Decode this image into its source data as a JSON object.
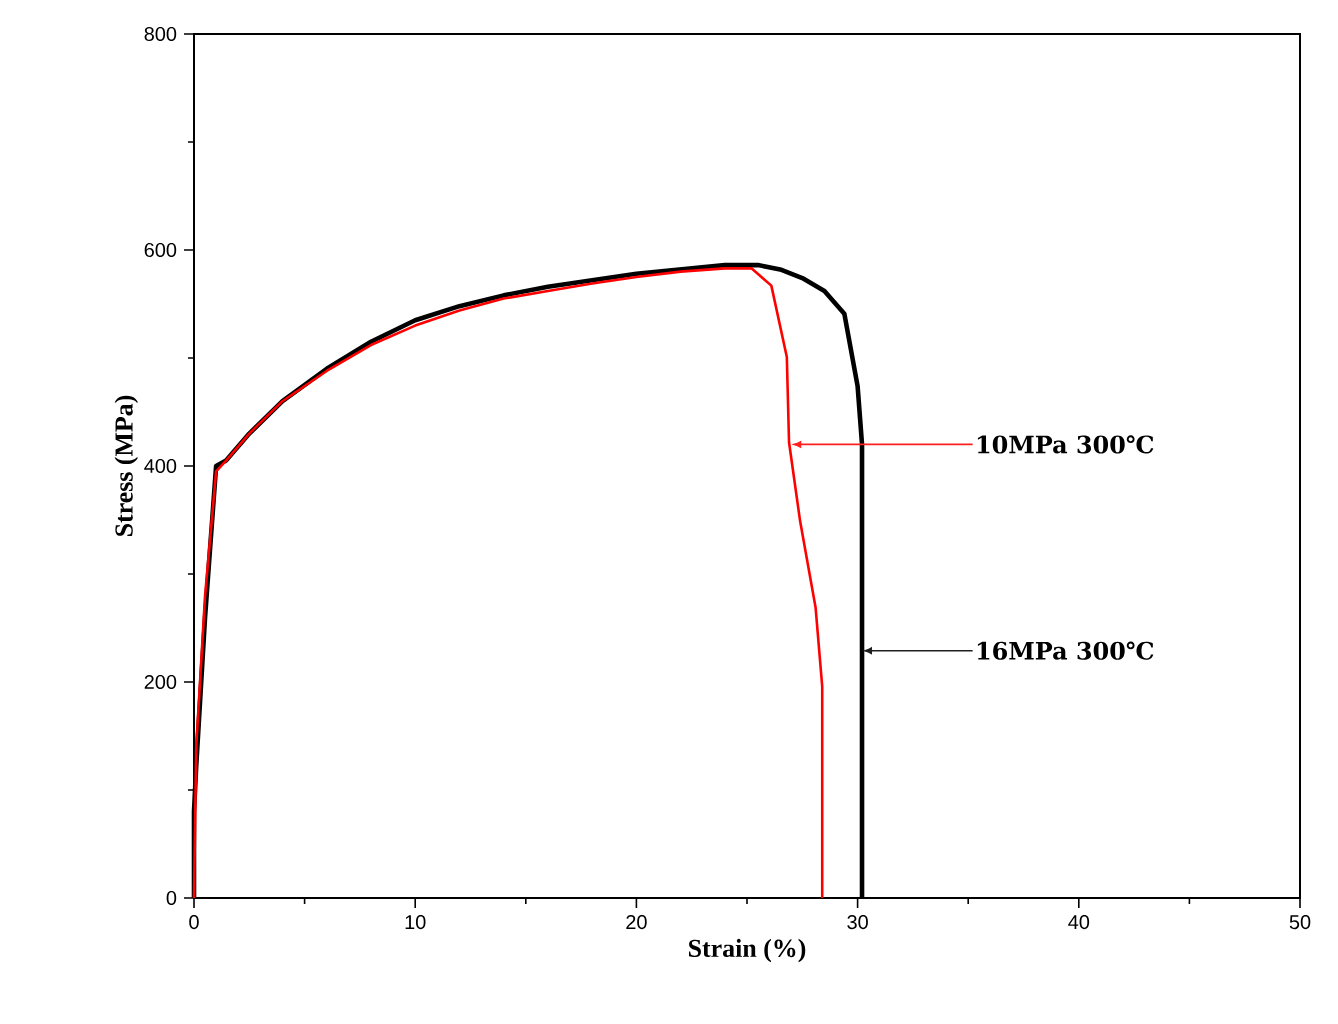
{
  "chart_data": {
    "type": "line",
    "xlabel": "Strain (%)",
    "ylabel": "Stress (MPa)",
    "xlim": [
      0,
      50
    ],
    "ylim": [
      0,
      800
    ],
    "xticks": [
      0,
      10,
      20,
      30,
      40,
      50
    ],
    "yticks": [
      0,
      200,
      400,
      600,
      800
    ],
    "marker": "none",
    "line_style": "solid",
    "series": [
      {
        "color": "#000000",
        "x": [
          0,
          0,
          0.1,
          0.5,
          1.0,
          1.45,
          2.5,
          4,
          6,
          8,
          10,
          12,
          14,
          16,
          18,
          20,
          22,
          24,
          25.5,
          26.5,
          27.5,
          28.5,
          29.4,
          30.0,
          30.2,
          30.2
        ],
        "values": [
          0,
          80,
          122,
          260,
          400,
          405,
          430,
          460,
          490,
          515,
          535,
          548,
          558,
          566,
          572,
          578,
          582,
          586,
          586,
          582,
          574,
          562,
          541,
          474,
          420,
          0
        ]
      },
      {
        "color": "#ff0000",
        "x": [
          0,
          0.1,
          0.5,
          1.0,
          1.45,
          2.5,
          4,
          6,
          8,
          10,
          12,
          14,
          16,
          18,
          20,
          22,
          24,
          25.2,
          26.1,
          26.8,
          26.9,
          27.4,
          28.1,
          28.4,
          28.4
        ],
        "values": [
          0,
          140,
          280,
          395,
          405,
          430,
          460,
          488,
          512,
          530,
          544,
          555,
          562,
          569,
          575,
          580,
          583,
          583,
          567,
          501,
          422,
          349,
          269,
          196,
          0
        ]
      }
    ],
    "annotations": [
      {
        "text": "10MPa 300℃",
        "x": 27.0,
        "y": 420
      },
      {
        "text": "16MPa 300℃",
        "x": 30.2,
        "y": 229
      }
    ]
  }
}
